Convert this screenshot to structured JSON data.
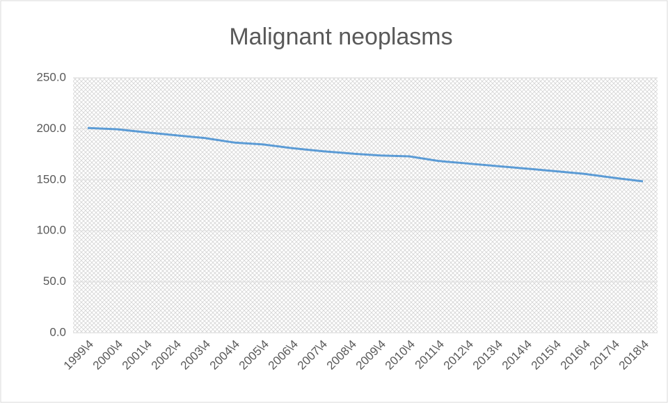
{
  "chart_data": {
    "type": "line",
    "title": "Malignant neoplasms",
    "categories": [
      "1999\\4",
      "2000\\4",
      "2001\\4",
      "2002\\4",
      "2003\\4",
      "2004\\4",
      "2005\\4",
      "2006\\4",
      "2007\\4",
      "2008\\4",
      "2009\\4",
      "2010\\4",
      "2011\\4",
      "2012\\4",
      "2013\\4",
      "2014\\4",
      "2015\\4",
      "2016\\4",
      "2017\\4",
      "2018\\4"
    ],
    "series": [
      {
        "name": "Malignant neoplasms",
        "color": "#5b9bd5",
        "values": [
          200.8,
          199.6,
          196.5,
          193.7,
          191.0,
          186.6,
          184.7,
          181.0,
          178.1,
          175.8,
          173.9,
          173.0,
          168.5,
          166.0,
          163.5,
          161.0,
          158.5,
          155.8,
          152.0,
          148.5
        ]
      }
    ],
    "ylim": [
      0,
      250
    ],
    "yticks": [
      {
        "value": 0,
        "label": "0.0"
      },
      {
        "value": 50,
        "label": "50.0"
      },
      {
        "value": 100,
        "label": "100.0"
      },
      {
        "value": 150,
        "label": "150.0"
      },
      {
        "value": 200,
        "label": "200.0"
      },
      {
        "value": 250,
        "label": "250.0"
      }
    ],
    "grid": true
  }
}
